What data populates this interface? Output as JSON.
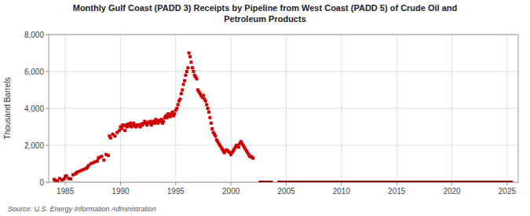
{
  "chart_data": {
    "type": "scatter",
    "title": "Monthly Gulf Coast (PADD 3) Receipts by Pipeline from West Coast (PADD 5) of Crude Oil and\nPetroleum Products",
    "ylabel": "Thousand Barrels",
    "source": "Source: U.S. Energy Information Administration",
    "xlim": [
      1983.5,
      2026
    ],
    "ylim": [
      0,
      8000
    ],
    "xticks": [
      1985,
      1990,
      1995,
      2000,
      2005,
      2010,
      2015,
      2020,
      2025
    ],
    "yticks": [
      0,
      {
        "value": 2000,
        "label": "2,000"
      },
      {
        "value": 4000,
        "label": "4,000"
      },
      {
        "value": 6000,
        "label": "6,000"
      },
      {
        "value": 8000,
        "label": "8,000"
      }
    ],
    "grid": true,
    "series": [
      {
        "type": "scatter",
        "color": "#cc0000",
        "marker": "square",
        "x": [
          1984.0,
          1984.1,
          1984.3,
          1984.5,
          1984.7,
          1984.9,
          1985.0,
          1985.1,
          1985.3,
          1985.5,
          1985.7,
          1985.9,
          1986.0,
          1986.1,
          1986.3,
          1986.5,
          1986.7,
          1986.9,
          1987.0,
          1987.1,
          1987.3,
          1987.5,
          1987.7,
          1987.9,
          1988.0,
          1988.1,
          1988.3,
          1988.5,
          1988.7,
          1988.9,
          1989.0,
          1989.1,
          1989.3,
          1989.5,
          1989.7,
          1989.9,
          1990.0,
          1990.1,
          1990.2,
          1990.3,
          1990.4,
          1990.5,
          1990.6,
          1990.7,
          1990.8,
          1990.9,
          1991.0,
          1991.1,
          1991.2,
          1991.3,
          1991.4,
          1991.5,
          1991.6,
          1991.7,
          1991.8,
          1991.9,
          1992.0,
          1992.1,
          1992.2,
          1992.3,
          1992.4,
          1992.5,
          1992.6,
          1992.7,
          1992.8,
          1992.9,
          1993.0,
          1993.1,
          1993.2,
          1993.3,
          1993.4,
          1993.5,
          1993.6,
          1993.7,
          1993.8,
          1993.9,
          1994.0,
          1994.1,
          1994.2,
          1994.3,
          1994.4,
          1994.5,
          1994.6,
          1994.7,
          1994.8,
          1994.9,
          1995.0,
          1995.1,
          1995.2,
          1995.3,
          1995.4,
          1995.5,
          1995.6,
          1995.7,
          1995.8,
          1995.9,
          1996.0,
          1996.1,
          1996.2,
          1996.3,
          1996.4,
          1996.5,
          1996.6,
          1996.7,
          1996.8,
          1996.9,
          1997.0,
          1997.1,
          1997.2,
          1997.3,
          1997.4,
          1997.5,
          1997.6,
          1997.7,
          1997.8,
          1997.9,
          1998.0,
          1998.1,
          1998.2,
          1998.3,
          1998.4,
          1998.5,
          1998.6,
          1998.7,
          1998.8,
          1998.9,
          1999.0,
          1999.1,
          1999.2,
          1999.3,
          1999.4,
          1999.5,
          1999.6,
          1999.7,
          1999.8,
          1999.9,
          2000.0,
          2000.1,
          2000.2,
          2000.3,
          2000.4,
          2000.5,
          2000.6,
          2000.7,
          2000.8,
          2000.9,
          2001.0,
          2001.1,
          2001.2,
          2001.3,
          2001.4,
          2001.5,
          2001.6,
          2001.7,
          2001.8,
          2001.9,
          2002.0
        ],
        "values": [
          150,
          100,
          80,
          200,
          120,
          180,
          300,
          350,
          200,
          180,
          400,
          450,
          500,
          550,
          600,
          650,
          700,
          750,
          800,
          900,
          1000,
          1050,
          1100,
          1150,
          1300,
          1350,
          1400,
          1200,
          1500,
          1450,
          2500,
          2400,
          2600,
          2500,
          2700,
          2800,
          3000,
          2900,
          3100,
          3050,
          2800,
          3100,
          3000,
          3150,
          3050,
          3200,
          3000,
          3100,
          3200,
          3050,
          3000,
          3100,
          3100,
          3050,
          3000,
          3150,
          3100,
          3200,
          3300,
          3200,
          3100,
          3250,
          3200,
          3300,
          3100,
          3200,
          3300,
          3200,
          3400,
          3300,
          3200,
          3350,
          3300,
          3400,
          3200,
          3300,
          3500,
          3600,
          3500,
          3700,
          3600,
          3550,
          3700,
          3800,
          3600,
          3700,
          3900,
          4000,
          4200,
          4400,
          4500,
          4800,
          5000,
          5300,
          5500,
          5800,
          6000,
          6200,
          7000,
          6800,
          6500,
          6200,
          6000,
          5800,
          5700,
          5600,
          5000,
          4900,
          4800,
          4700,
          4600,
          4700,
          4500,
          4400,
          4200,
          4000,
          3800,
          3500,
          3200,
          2900,
          2700,
          2600,
          2500,
          2300,
          2200,
          2100,
          2000,
          1900,
          1800,
          1700,
          1600,
          1700,
          1750,
          1700,
          1650,
          1600,
          1500,
          1600,
          1700,
          1800,
          1900,
          2000,
          2000,
          1900,
          2100,
          2200,
          2100,
          2000,
          1900,
          1800,
          1700,
          1600,
          1500,
          1400,
          1400,
          1350,
          1300
        ]
      },
      {
        "type": "line",
        "color": "#8b0000",
        "x": [
          2002.5,
          2003.8,
          null,
          2004.2,
          2025.5
        ],
        "values": [
          0,
          0,
          null,
          0,
          0
        ]
      }
    ]
  }
}
